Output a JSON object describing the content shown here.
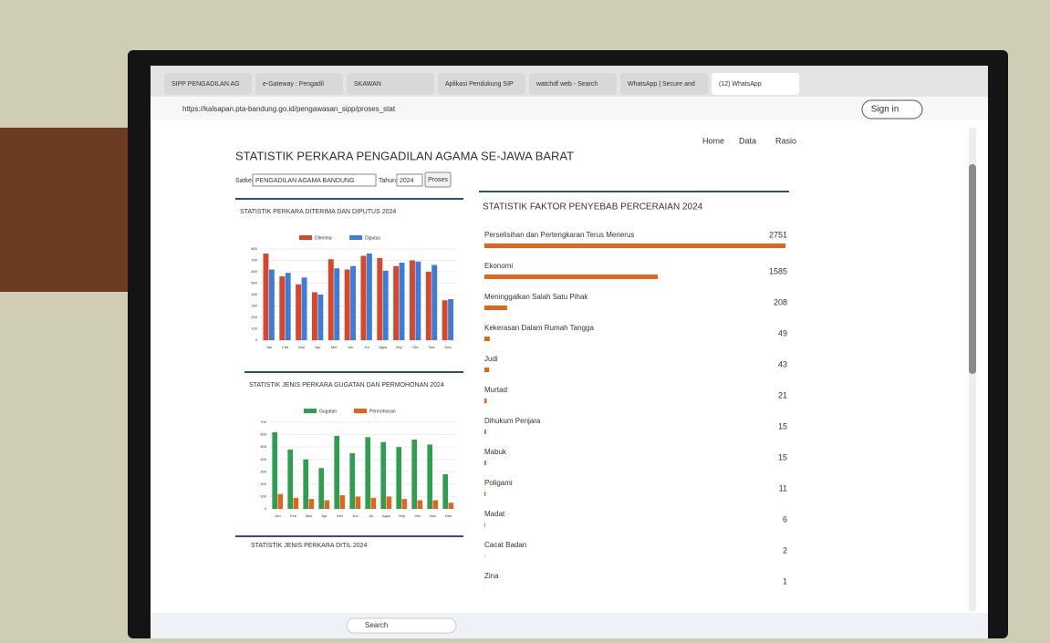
{
  "browser": {
    "tabs": [
      "SIPP PENGADILAN AG",
      "e-Gateway : Pengadil",
      "SKAWAN",
      "Aplikasi Pendukung SIP",
      "watchdf web - Search",
      "WhatsApp | Secure and",
      "(12) WhatsApp"
    ],
    "url": "https://kalsapan.pta-bandung.go.id/pengawasan_sipp/proses_stat",
    "sign_in": "Sign in"
  },
  "page": {
    "title": "STATISTIK PERKARA PENGADILAN AGAMA SE-JAWA BARAT",
    "nav": [
      "Home",
      "Data",
      "Rasio"
    ],
    "filters": {
      "satker_label": "Satker",
      "satker": "PENGADILAN AGAMA BANDUNG",
      "tahun_label": "Tahun",
      "tahun": "2024",
      "button": "Proses"
    },
    "extra_panel_title": "STATISTIK JENIS PERKARA DITIL 2024"
  },
  "taskbar": {
    "search": "Search"
  },
  "chart_data": [
    {
      "type": "bar",
      "title": "STATISTIK PERKARA DITERIMA DAN DIPUTUS 2024",
      "categories": [
        "Jan",
        "Feb",
        "Mar",
        "Apr",
        "Mei",
        "Jun",
        "Jul",
        "Agus",
        "Sep",
        "Okt",
        "Nov",
        "Des"
      ],
      "series": [
        {
          "name": "Diterima",
          "color": "#d9472b",
          "values": [
            760,
            560,
            490,
            420,
            710,
            620,
            740,
            720,
            650,
            700,
            600,
            350
          ]
        },
        {
          "name": "Diputus",
          "color": "#3b7dd8",
          "values": [
            620,
            590,
            550,
            400,
            630,
            650,
            760,
            610,
            680,
            690,
            660,
            360
          ]
        }
      ],
      "ylim": [
        0,
        800
      ],
      "yticks": [
        0,
        100,
        200,
        300,
        400,
        500,
        600,
        700,
        800
      ],
      "grid": true
    },
    {
      "type": "bar",
      "title": "STATISTIK JENIS PERKARA GUGATAN DAN PERMOHONAN 2024",
      "categories": [
        "Jan",
        "Feb",
        "Mar",
        "Apr",
        "Mei",
        "Jun",
        "Jul",
        "Agus",
        "Sep",
        "Okt",
        "Nov",
        "Des"
      ],
      "series": [
        {
          "name": "Gugatan",
          "color": "#2e9e4f",
          "values": [
            620,
            480,
            400,
            330,
            590,
            450,
            580,
            540,
            500,
            560,
            520,
            280
          ]
        },
        {
          "name": "Permohonan",
          "color": "#e0661c",
          "values": [
            120,
            90,
            80,
            70,
            110,
            100,
            90,
            100,
            80,
            70,
            70,
            50
          ]
        }
      ],
      "ylim": [
        0,
        700
      ],
      "yticks": [
        0,
        100,
        200,
        300,
        400,
        500,
        600,
        700
      ],
      "grid": true
    },
    {
      "type": "hbar",
      "title": "STATISTIK FAKTOR PENYEBAB PERCERAIAN 2024",
      "categories": [
        "Perselisihan dan Pertengkaran Terus Menerus",
        "Ekonomi",
        "Meninggalkan Salah Satu Pihak",
        "Kekerasan Dalam Rumah Tangga",
        "Judi",
        "Murtad",
        "Dihukum Penjara",
        "Mabuk",
        "Poligami",
        "Madat",
        "Cacat Badan",
        "Zina"
      ],
      "values": [
        2751,
        1585,
        208,
        49,
        43,
        21,
        15,
        15,
        11,
        6,
        2,
        1
      ],
      "color": "#e0661c"
    }
  ]
}
